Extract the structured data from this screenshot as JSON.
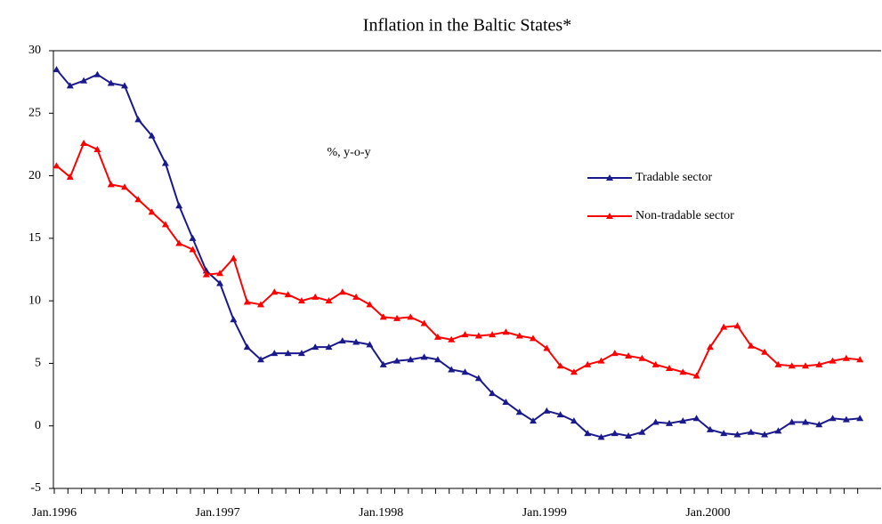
{
  "chart_data": {
    "type": "line",
    "title": "Inflation in the Baltic States*",
    "annotation": "%, y-o-y",
    "categories": [
      "Jan.1996",
      null,
      null,
      null,
      null,
      null,
      null,
      null,
      null,
      null,
      null,
      null,
      "Jan.1997",
      null,
      null,
      null,
      null,
      null,
      null,
      null,
      null,
      null,
      null,
      null,
      "Jan.1998",
      null,
      null,
      null,
      null,
      null,
      null,
      null,
      null,
      null,
      null,
      null,
      "Jan.1999",
      null,
      null,
      null,
      null,
      null,
      null,
      null,
      null,
      null,
      null,
      null,
      "Jan.2000",
      null,
      null,
      null,
      null,
      null,
      null,
      null,
      null,
      null,
      null,
      null
    ],
    "series": [
      {
        "name": "Tradable sector",
        "color": "#1a1a8c",
        "values": [
          28.5,
          27.2,
          27.6,
          28.1,
          27.4,
          27.2,
          24.5,
          23.2,
          21.0,
          17.6,
          15.0,
          12.4,
          11.4,
          8.5,
          6.3,
          5.3,
          5.8,
          5.8,
          5.8,
          6.3,
          6.3,
          6.8,
          6.7,
          6.5,
          4.9,
          5.2,
          5.3,
          5.5,
          5.3,
          4.5,
          4.3,
          3.8,
          2.6,
          1.9,
          1.1,
          0.4,
          1.2,
          0.9,
          0.4,
          -0.6,
          -0.9,
          -0.6,
          -0.8,
          -0.5,
          0.3,
          0.2,
          0.4,
          0.6,
          -0.3,
          -0.6,
          -0.7,
          -0.5,
          -0.7,
          -0.4,
          0.3,
          0.3,
          0.1,
          0.6,
          0.5,
          0.6
        ]
      },
      {
        "name": "Non-tradable sector",
        "color": "#ff0000",
        "values": [
          20.8,
          19.9,
          22.6,
          22.1,
          19.3,
          19.1,
          18.1,
          17.1,
          16.1,
          14.6,
          14.1,
          12.1,
          12.2,
          13.4,
          9.9,
          9.7,
          10.7,
          10.5,
          10.0,
          10.3,
          10.0,
          10.7,
          10.3,
          9.7,
          8.7,
          8.6,
          8.7,
          8.2,
          7.1,
          6.9,
          7.3,
          7.2,
          7.3,
          7.5,
          7.2,
          7.0,
          6.2,
          4.8,
          4.3,
          4.9,
          5.2,
          5.8,
          5.6,
          5.4,
          4.9,
          4.6,
          4.3,
          4.0,
          6.3,
          7.9,
          8.0,
          6.4,
          5.9,
          4.9,
          4.8,
          4.8,
          4.9,
          5.2,
          5.4,
          5.3
        ]
      }
    ],
    "ylim": [
      -5,
      30
    ],
    "yticks": [
      -5,
      0,
      5,
      10,
      15,
      20,
      25,
      30
    ],
    "grid": false
  }
}
